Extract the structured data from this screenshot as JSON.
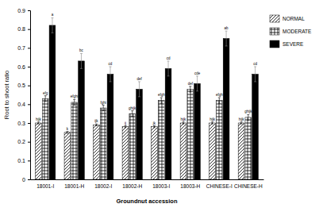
{
  "chart_data": {
    "type": "bar",
    "x_label": "Groundnut accession",
    "y_label": "Root to shoot ratio",
    "categories": [
      "18001-I",
      "18001-H",
      "18002-I",
      "18002-H",
      "18003-I",
      "18003-H",
      "CHINESE-I",
      "CHINESE-H"
    ],
    "series": [
      {
        "name": "NORMAL",
        "color": "#000000",
        "values": [
          0.3,
          0.25,
          0.29,
          0.28,
          0.28,
          0.3,
          0.3,
          0.3
        ],
        "errors": [
          0.005,
          0.005,
          0.005,
          0.005,
          0.005,
          0.005,
          0.005,
          0.005
        ],
        "letters": [
          "hijk",
          "k",
          "ijk",
          "ij",
          "jk",
          "hijk",
          "hijk",
          "hijk"
        ]
      },
      {
        "name": "MODERATE",
        "color": "#000000",
        "values": [
          0.43,
          0.41,
          0.38,
          0.35,
          0.42,
          0.48,
          0.42,
          0.33
        ],
        "errors": [
          0.015,
          0.015,
          0.015,
          0.015,
          0.015,
          0.015,
          0.015,
          0.015
        ],
        "letters": [
          "efg",
          "efghi",
          "fghi",
          "ghijk",
          "efgh",
          "def",
          "efgh",
          "ghijk"
        ]
      },
      {
        "name": "SEVERE",
        "color": "#000000",
        "values": [
          0.82,
          0.63,
          0.56,
          0.48,
          0.59,
          0.51,
          0.75,
          0.56
        ],
        "errors": [
          0.04,
          0.04,
          0.04,
          0.04,
          0.04,
          0.04,
          0.04,
          0.04
        ],
        "letters": [
          "a",
          "bc",
          "cd",
          "def",
          "cd",
          "cde",
          "ab",
          "cd"
        ]
      }
    ],
    "ylim": [
      0,
      0.9
    ],
    "yticks": [
      0,
      0.1,
      0.2,
      0.3,
      0.4,
      0.5,
      0.6,
      0.7,
      0.8,
      0.9
    ],
    "grid": false,
    "legend": "right"
  }
}
